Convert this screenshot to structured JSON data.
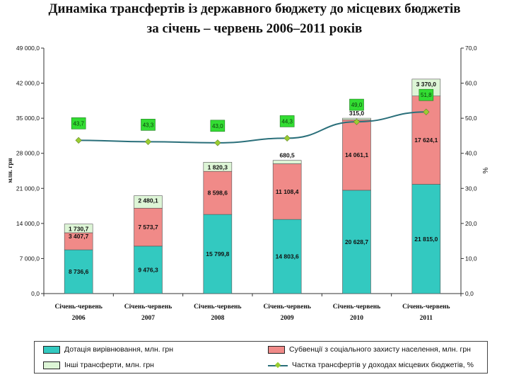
{
  "title_line1": "Динаміка трансфертів із державного бюджету до місцевих бюджетів",
  "title_line2": "за січень – червень 2006–2011 років",
  "chart_data": {
    "type": "bar",
    "stacked": true,
    "categories": [
      [
        "Січень-червень",
        "2006"
      ],
      [
        "Січень-червень",
        "2007"
      ],
      [
        "Січень-червень",
        "2008"
      ],
      [
        "Січень-червень",
        "2009"
      ],
      [
        "Січень-червень",
        "2010"
      ],
      [
        "Січень-червень",
        "2011"
      ]
    ],
    "ylabel_left": "млн. грн",
    "ylabel_right": "%",
    "ylim_left": [
      0,
      49000
    ],
    "yticks_left": [
      "0,0",
      "7 000,0",
      "14 000,0",
      "21 000,0",
      "28 000,0",
      "35 000,0",
      "42 000,0",
      "49 000,0"
    ],
    "ylim_right": [
      0,
      70
    ],
    "yticks_right": [
      "0,0",
      "10,0",
      "20,0",
      "30,0",
      "40,0",
      "50,0",
      "60,0",
      "70,0"
    ],
    "series": [
      {
        "name": "Дотація вирівнювання, млн. грн",
        "color": "#33c9c0",
        "values": [
          8736.6,
          9476.3,
          15799.8,
          14803.6,
          20628.7,
          21815.0
        ],
        "labels": [
          "8 736,6",
          "9 476,3",
          "15 799,8",
          "14 803,6",
          "20 628,7",
          "21 815,0"
        ]
      },
      {
        "name": "Субвенції з соціального захисту населення, млн. грн",
        "color": "#f08a88",
        "values": [
          3407.7,
          7573.7,
          8598.6,
          11108.4,
          14061.1,
          17624.1
        ],
        "labels": [
          "3 407,7",
          "7 573,7",
          "8 598,6",
          "11 108,4",
          "14 061,1",
          "17 624,1"
        ]
      },
      {
        "name": "Інші трансферти, млн. грн",
        "color": "#ddf5d6",
        "values": [
          1730.7,
          2480.1,
          1820.3,
          680.5,
          315.0,
          3370.0
        ],
        "labels": [
          "1 730,7",
          "2 480,1",
          "1 820,3",
          "680,5",
          "315,0",
          "3 370,0"
        ]
      }
    ],
    "line": {
      "name": "Частка трансфертів у доходах місцевих бюджетів, %",
      "axis": "right",
      "color": "#2a6f7a",
      "marker_color": "#9acd32",
      "label_bg": "#33dd33",
      "values": [
        43.7,
        43.3,
        43.0,
        44.3,
        49.0,
        51.8
      ],
      "labels": [
        "43,7",
        "43,3",
        "43,0",
        "44,3",
        "49,0",
        "51,8"
      ]
    }
  }
}
